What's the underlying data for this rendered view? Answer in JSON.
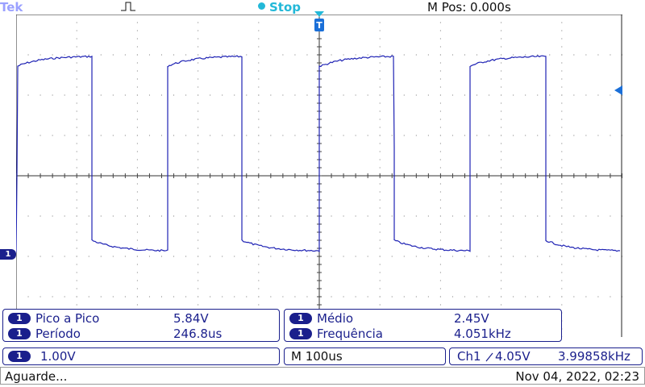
{
  "top_bar": {
    "brand": "Tek",
    "run_status": "Stop",
    "horizontal_position": "M Pos: 0.000s"
  },
  "screen": {
    "channel_marker": "1",
    "trigger_position_marker": "T"
  },
  "measurements_left": [
    {
      "channel": "1",
      "label": "Pico a Pico",
      "value": "5.84V"
    },
    {
      "channel": "1",
      "label": "Período",
      "value": "246.8us"
    }
  ],
  "measurements_right": [
    {
      "channel": "1",
      "label": "Médio",
      "value": "2.45V"
    },
    {
      "channel": "1",
      "label": "Frequência",
      "value": "4.051kHz"
    }
  ],
  "status_bar": {
    "ch_badge": "1",
    "ch_scale": "1.00V",
    "timebase": "M 100us",
    "trigger_source": "Ch1",
    "trigger_level": "4.05V",
    "trigger_frequency": "3.99858kHz"
  },
  "footer": {
    "message": "Aguarde...",
    "datetime": "Nov 04, 2022, 02:23"
  },
  "colors": {
    "trace": "#1e22b4",
    "grid": "#2a2a2a",
    "panel_border": "#1a1f8c",
    "run_status": "#22b8d8"
  }
}
